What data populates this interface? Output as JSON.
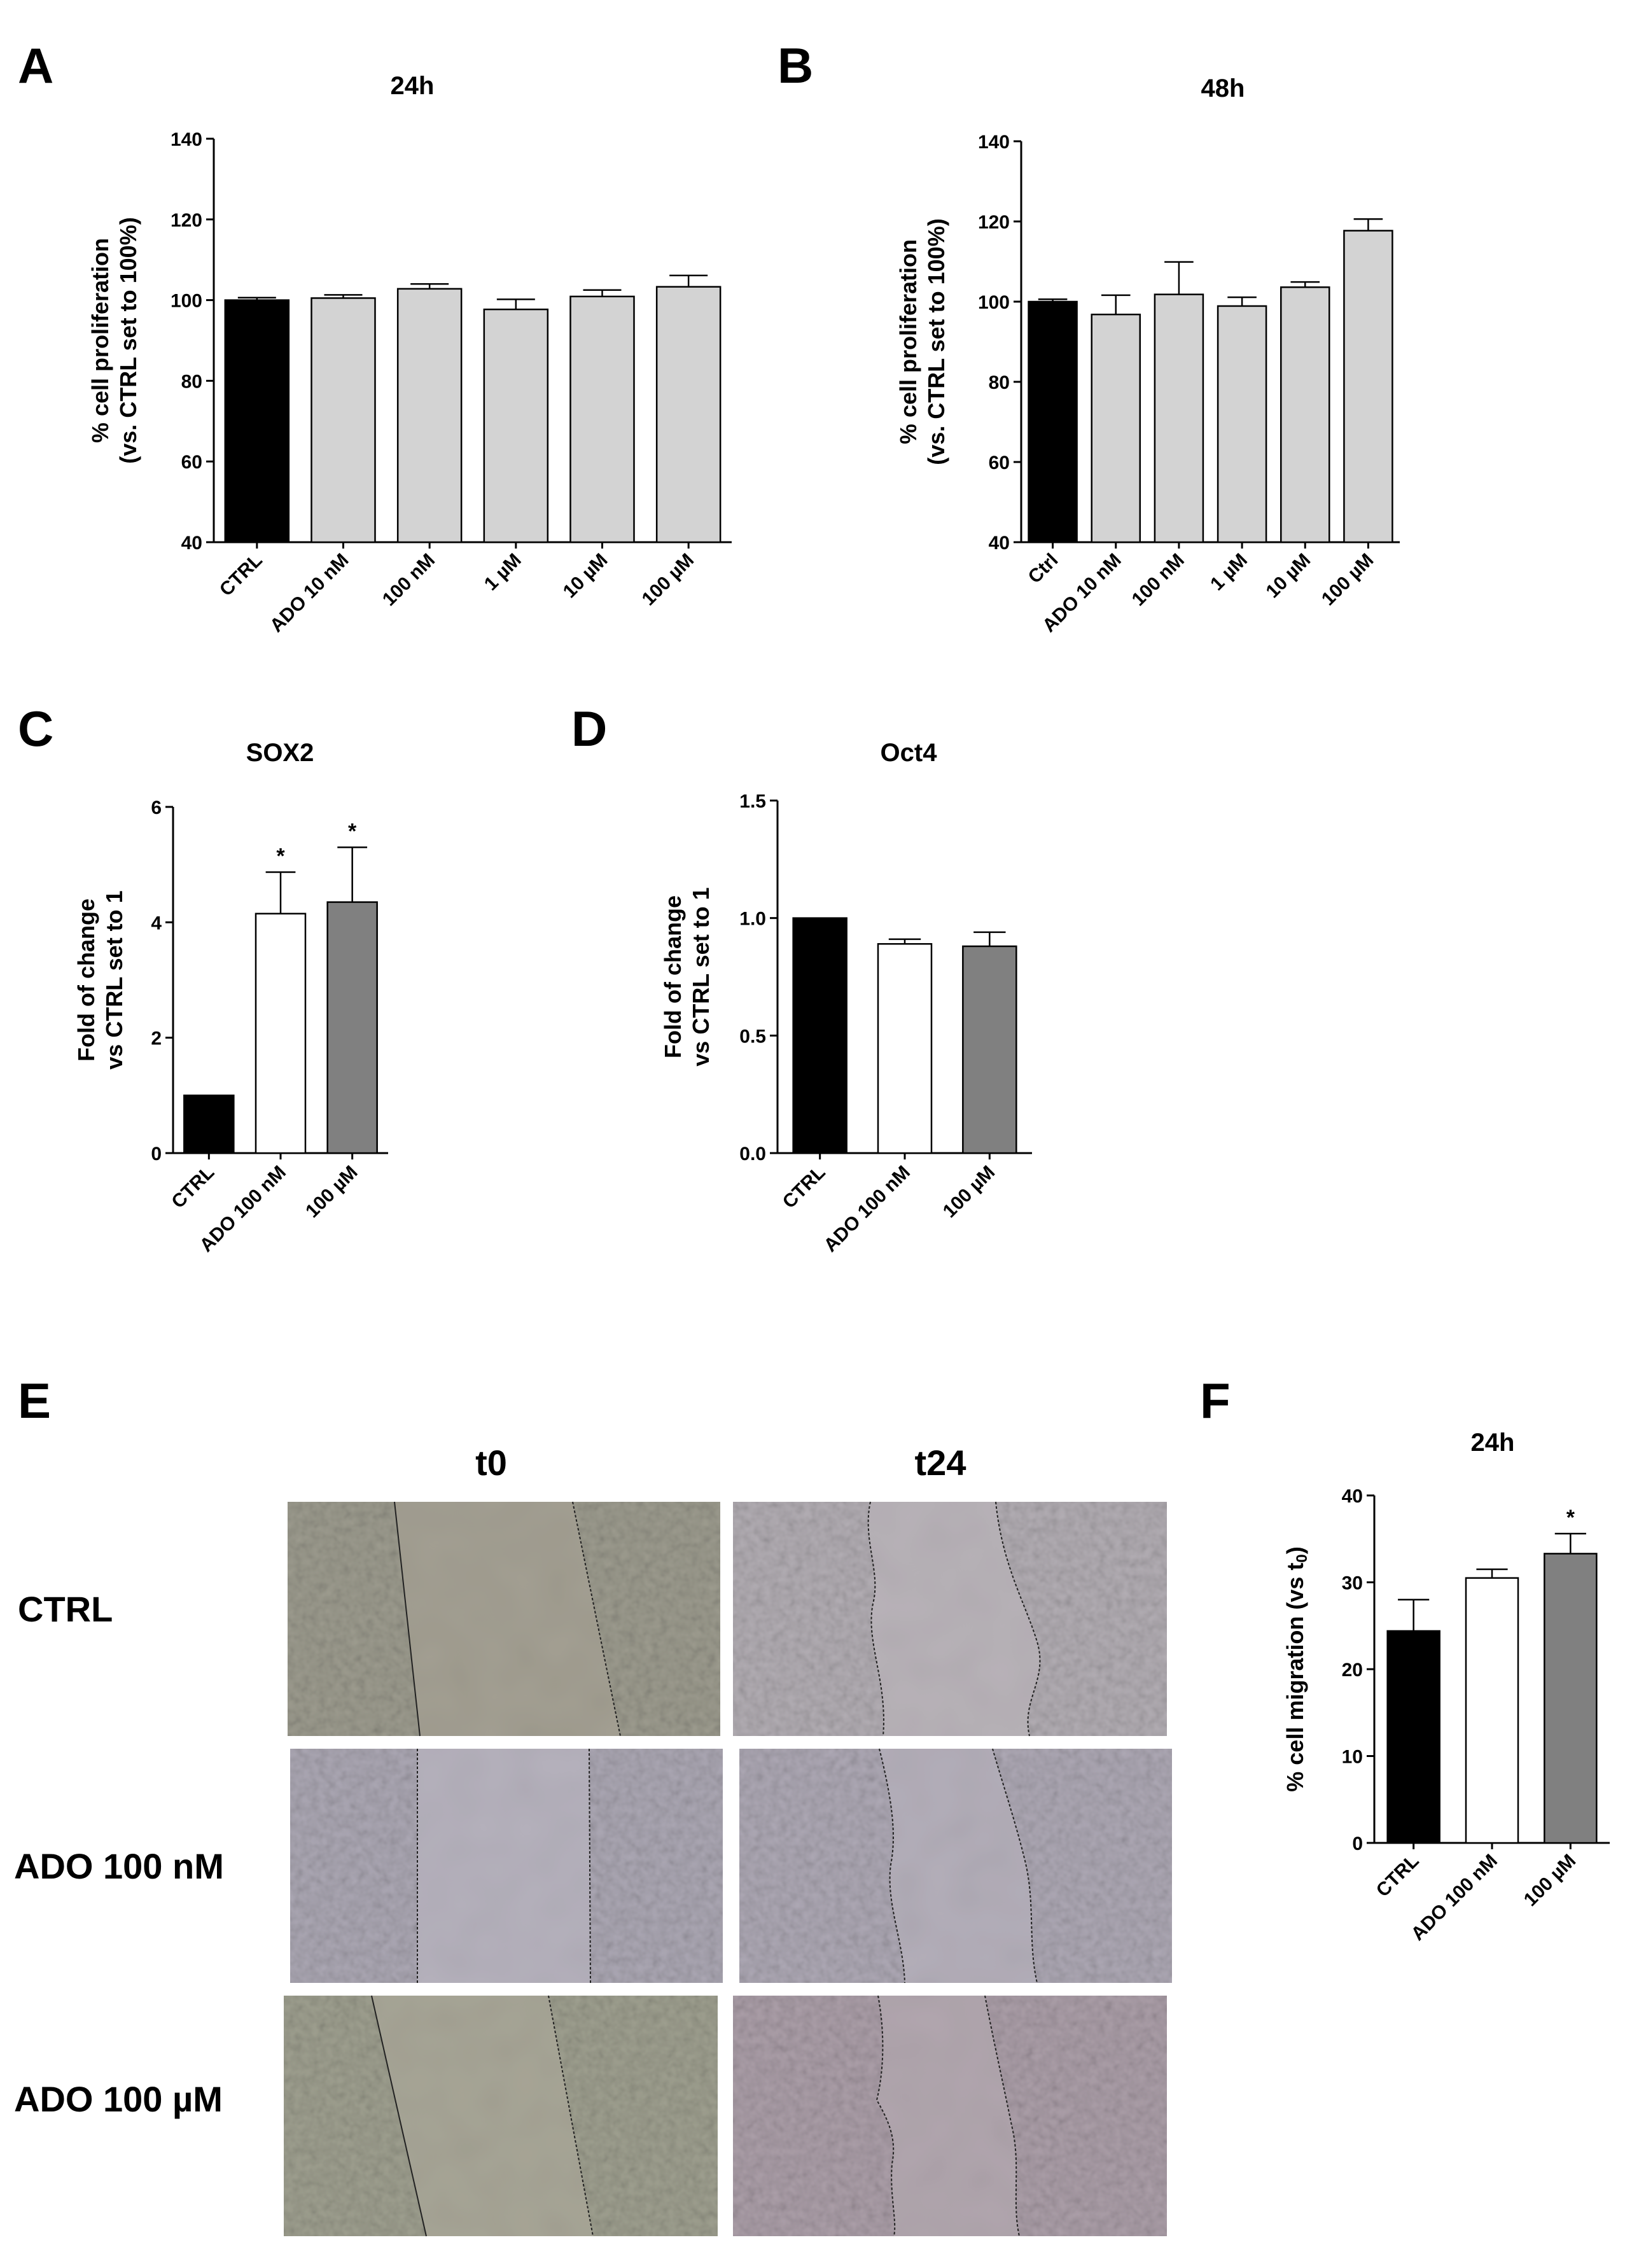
{
  "panels": {
    "A": "A",
    "B": "B",
    "C": "C",
    "D": "D",
    "E": "E",
    "F": "F"
  },
  "chart_data": [
    {
      "id": "A",
      "type": "bar",
      "title": "24h",
      "ylabel_line1": "% cell proliferation",
      "ylabel_line2": "(vs. CTRL set to 100%)",
      "categories": [
        "CTRL",
        "ADO 10 nM",
        "100 nM",
        "1 µM",
        "10 µM",
        "100 µM"
      ],
      "values": [
        100,
        100.5,
        102.8,
        97.7,
        100.9,
        103.3
      ],
      "errors": [
        0.6,
        0.8,
        1.2,
        2.5,
        1.6,
        2.8
      ],
      "colors": [
        "#000000",
        "#d3d3d3",
        "#d3d3d3",
        "#d3d3d3",
        "#d3d3d3",
        "#d3d3d3"
      ],
      "significance": [
        "",
        "",
        "",
        "",
        "",
        ""
      ],
      "ylim": [
        40,
        140
      ],
      "yticks": [
        40,
        60,
        80,
        100,
        120,
        140
      ],
      "ytick_labels": [
        "40",
        "60",
        "80",
        "100",
        "120",
        "140"
      ]
    },
    {
      "id": "B",
      "type": "bar",
      "title": "48h",
      "ylabel_line1": "% cell proliferation",
      "ylabel_line2": "(vs. CTRL set to 100%)",
      "categories": [
        "Ctrl",
        "ADO 10 nM",
        "100 nM",
        "1 µM",
        "10 µM",
        "100 µM"
      ],
      "values": [
        100,
        96.8,
        101.8,
        98.9,
        103.6,
        117.7
      ],
      "errors": [
        0.6,
        4.8,
        8.1,
        2.2,
        1.3,
        2.9
      ],
      "colors": [
        "#000000",
        "#d3d3d3",
        "#d3d3d3",
        "#d3d3d3",
        "#d3d3d3",
        "#d3d3d3"
      ],
      "significance": [
        "",
        "",
        "",
        "",
        "",
        ""
      ],
      "ylim": [
        40,
        140
      ],
      "yticks": [
        40,
        60,
        80,
        100,
        120,
        140
      ],
      "ytick_labels": [
        "40",
        "60",
        "80",
        "100",
        "120",
        "140"
      ]
    },
    {
      "id": "C",
      "type": "bar",
      "title": "SOX2",
      "ylabel_line1": "Fold of change",
      "ylabel_line2": "vs CTRL set to 1",
      "categories": [
        "CTRL",
        "ADO 100 nM",
        "100 µM"
      ],
      "values": [
        1.0,
        4.15,
        4.35
      ],
      "errors": [
        0.0,
        0.72,
        0.95
      ],
      "colors": [
        "#000000",
        "#ffffff",
        "#808080"
      ],
      "significance": [
        "",
        "*",
        "*"
      ],
      "ylim": [
        0,
        6
      ],
      "yticks": [
        0,
        2,
        4,
        6
      ],
      "ytick_labels": [
        "0",
        "2",
        "4",
        "6"
      ]
    },
    {
      "id": "D",
      "type": "bar",
      "title": "Oct4",
      "ylabel_line1": "Fold of change",
      "ylabel_line2": "vs CTRL set to 1",
      "categories": [
        "CTRL",
        "ADO 100 nM",
        "100 µM"
      ],
      "values": [
        1.0,
        0.89,
        0.88
      ],
      "errors": [
        0.0,
        0.02,
        0.06
      ],
      "colors": [
        "#000000",
        "#ffffff",
        "#808080"
      ],
      "significance": [
        "",
        "",
        ""
      ],
      "ylim": [
        0,
        1.5
      ],
      "yticks": [
        0,
        0.5,
        1.0,
        1.5
      ],
      "ytick_labels": [
        "0.0",
        "0.5",
        "1.0",
        "1.5"
      ]
    },
    {
      "id": "F",
      "type": "bar",
      "title": "24h",
      "ylabel_line1": "% cell migration (vs t",
      "ylabel_sub": "0",
      "ylabel_line1_end": ")",
      "categories": [
        "CTRL",
        "ADO 100 nM",
        "100 µM"
      ],
      "values": [
        24.4,
        30.5,
        33.3
      ],
      "errors": [
        3.6,
        1.0,
        2.3
      ],
      "colors": [
        "#000000",
        "#ffffff",
        "#808080"
      ],
      "significance": [
        "",
        "",
        "*"
      ],
      "ylim": [
        0,
        40
      ],
      "yticks": [
        0,
        10,
        20,
        30,
        40
      ],
      "ytick_labels": [
        "0",
        "10",
        "20",
        "30",
        "40"
      ]
    }
  ],
  "microscopy": {
    "columns": [
      "t0",
      "t24"
    ],
    "rows": [
      "CTRL",
      "ADO 100 nM",
      "ADO 100 µM"
    ]
  }
}
